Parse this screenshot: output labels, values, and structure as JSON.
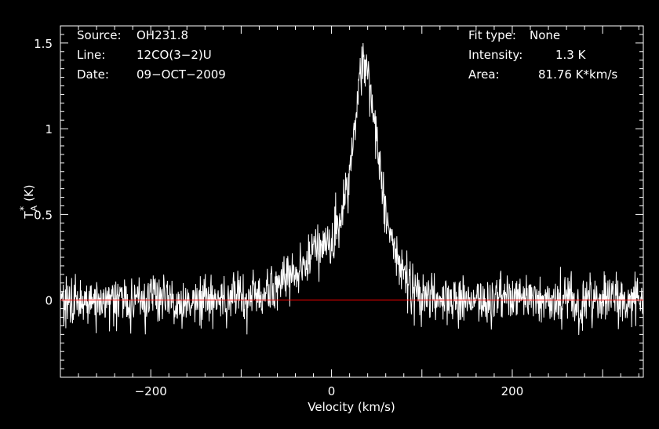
{
  "chart_data": {
    "type": "line",
    "xlabel": "Velocity (km/s)",
    "ylabel_main": "T",
    "ylabel_sup": "*",
    "ylabel_sub": "A",
    "ylabel_unit": "(K)",
    "xlim": [
      -300,
      345
    ],
    "ylim": [
      -0.45,
      1.6
    ],
    "xticks": [
      -200,
      0,
      200
    ],
    "yticks": [
      0,
      0.5,
      1,
      1.5
    ],
    "xtick_labels": [
      "−200",
      "0",
      "200"
    ],
    "ytick_labels": [
      "0",
      "0.5",
      "1",
      "1.5"
    ],
    "grid": false,
    "baseline": 0,
    "colors": {
      "background": "#000000",
      "spectrum": "#ffffff",
      "baseline": "#ff0000",
      "axes": "#ffffff"
    },
    "series": [
      {
        "x": [
          -300,
          -250,
          -200,
          -150,
          -100,
          -80,
          -60,
          -40,
          -20,
          0,
          10,
          20,
          25,
          30,
          35,
          40,
          45,
          50,
          55,
          60,
          70,
          80,
          90,
          100,
          150,
          200,
          250,
          300,
          345
        ],
        "values": [
          0,
          0,
          0,
          0,
          0.01,
          0.03,
          0.08,
          0.17,
          0.27,
          0.36,
          0.48,
          0.7,
          0.98,
          1.22,
          1.35,
          1.33,
          1.15,
          0.9,
          0.7,
          0.5,
          0.3,
          0.16,
          0.06,
          0.02,
          0,
          0,
          0,
          0,
          0
        ],
        "noise_amplitude": 0.13
      }
    ]
  },
  "info": {
    "source_label": "Source:",
    "source_value": "OH231.8",
    "line_label": "Line:",
    "line_value": "12CO(3−2)U",
    "date_label": "Date:",
    "date_value": "09−OCT−2009",
    "fit_label": "Fit type:",
    "fit_value": "None",
    "intensity_label": "Intensity:",
    "intensity_value": "1.3 K",
    "area_label": "Area:",
    "area_value": "81.76 K*km/s"
  }
}
